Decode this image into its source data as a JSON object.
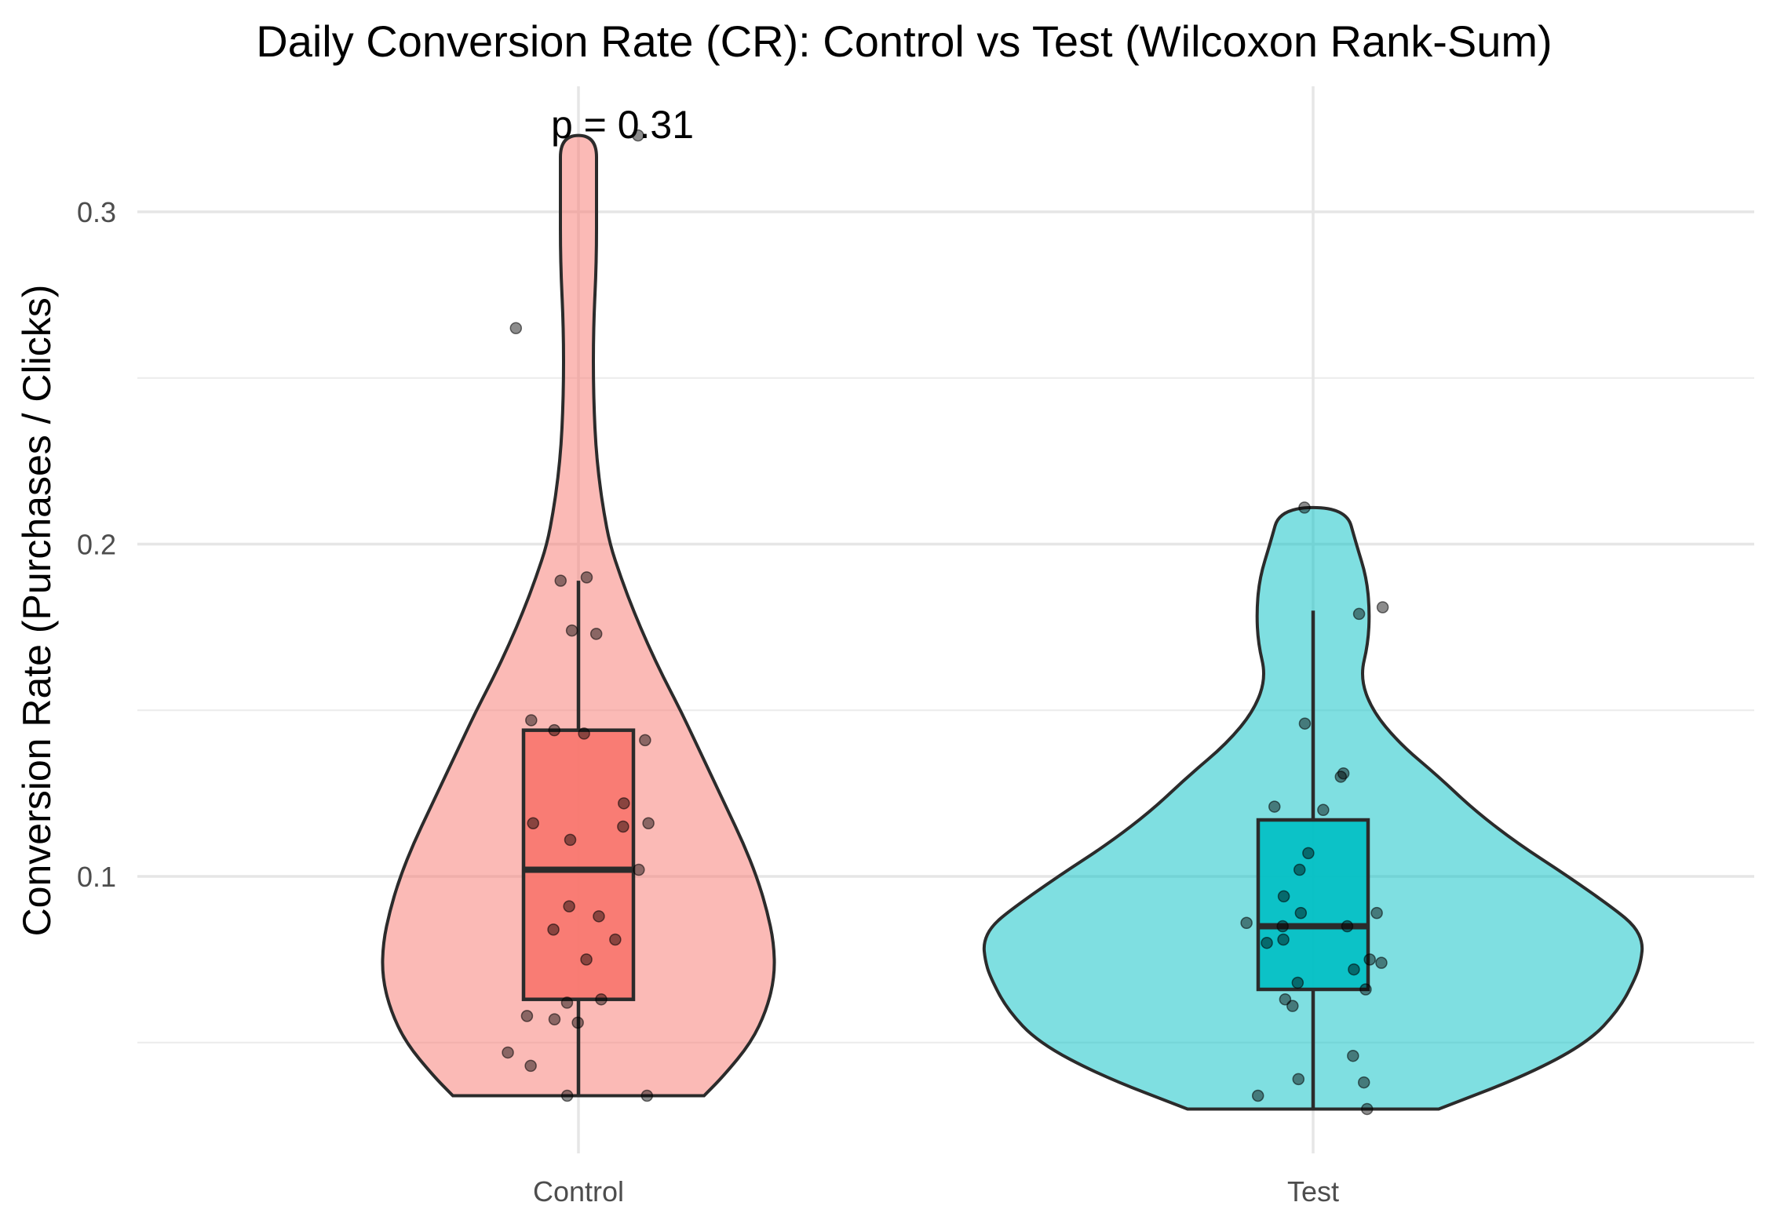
{
  "chart_data": {
    "type": "violin",
    "title": "Daily Conversion Rate (CR): Control vs Test (Wilcoxon Rank-Sum)",
    "xlabel": "",
    "ylabel": "Conversion Rate (Purchases / Clicks)",
    "ylim": [
      0.013,
      0.335
    ],
    "y_ticks": [
      0.1,
      0.2,
      0.3
    ],
    "y_tick_labels": [
      "0.1",
      "0.2",
      "0.3"
    ],
    "grid": true,
    "legend": "none",
    "categories": [
      "Control",
      "Test"
    ],
    "annotation": {
      "text": "p = 0.31",
      "y": 0.325,
      "group": "Control"
    },
    "series": [
      {
        "category": "Control",
        "violin_color": "#F8766D",
        "box_color": "#F8766D",
        "violin_range": [
          0.034,
          0.323
        ],
        "box": {
          "min": 0.034,
          "q1": 0.063,
          "median": 0.102,
          "q3": 0.144,
          "max": 0.189
        },
        "points": [
          0.323,
          0.265,
          0.19,
          0.189,
          0.174,
          0.173,
          0.147,
          0.144,
          0.143,
          0.141,
          0.122,
          0.116,
          0.116,
          0.115,
          0.111,
          0.102,
          0.091,
          0.088,
          0.084,
          0.081,
          0.075,
          0.063,
          0.062,
          0.058,
          0.057,
          0.056,
          0.047,
          0.043,
          0.034,
          0.034
        ]
      },
      {
        "category": "Test",
        "violin_color": "#00BFC4",
        "box_color": "#00BFC4",
        "violin_range": [
          0.03,
          0.211
        ],
        "box": {
          "min": 0.03,
          "q1": 0.066,
          "median": 0.085,
          "q3": 0.117,
          "max": 0.18
        },
        "points": [
          0.211,
          0.181,
          0.179,
          0.146,
          0.131,
          0.13,
          0.121,
          0.12,
          0.107,
          0.102,
          0.094,
          0.089,
          0.089,
          0.086,
          0.085,
          0.085,
          0.081,
          0.08,
          0.075,
          0.074,
          0.072,
          0.068,
          0.066,
          0.063,
          0.061,
          0.046,
          0.039,
          0.038,
          0.034,
          0.03
        ]
      }
    ]
  }
}
